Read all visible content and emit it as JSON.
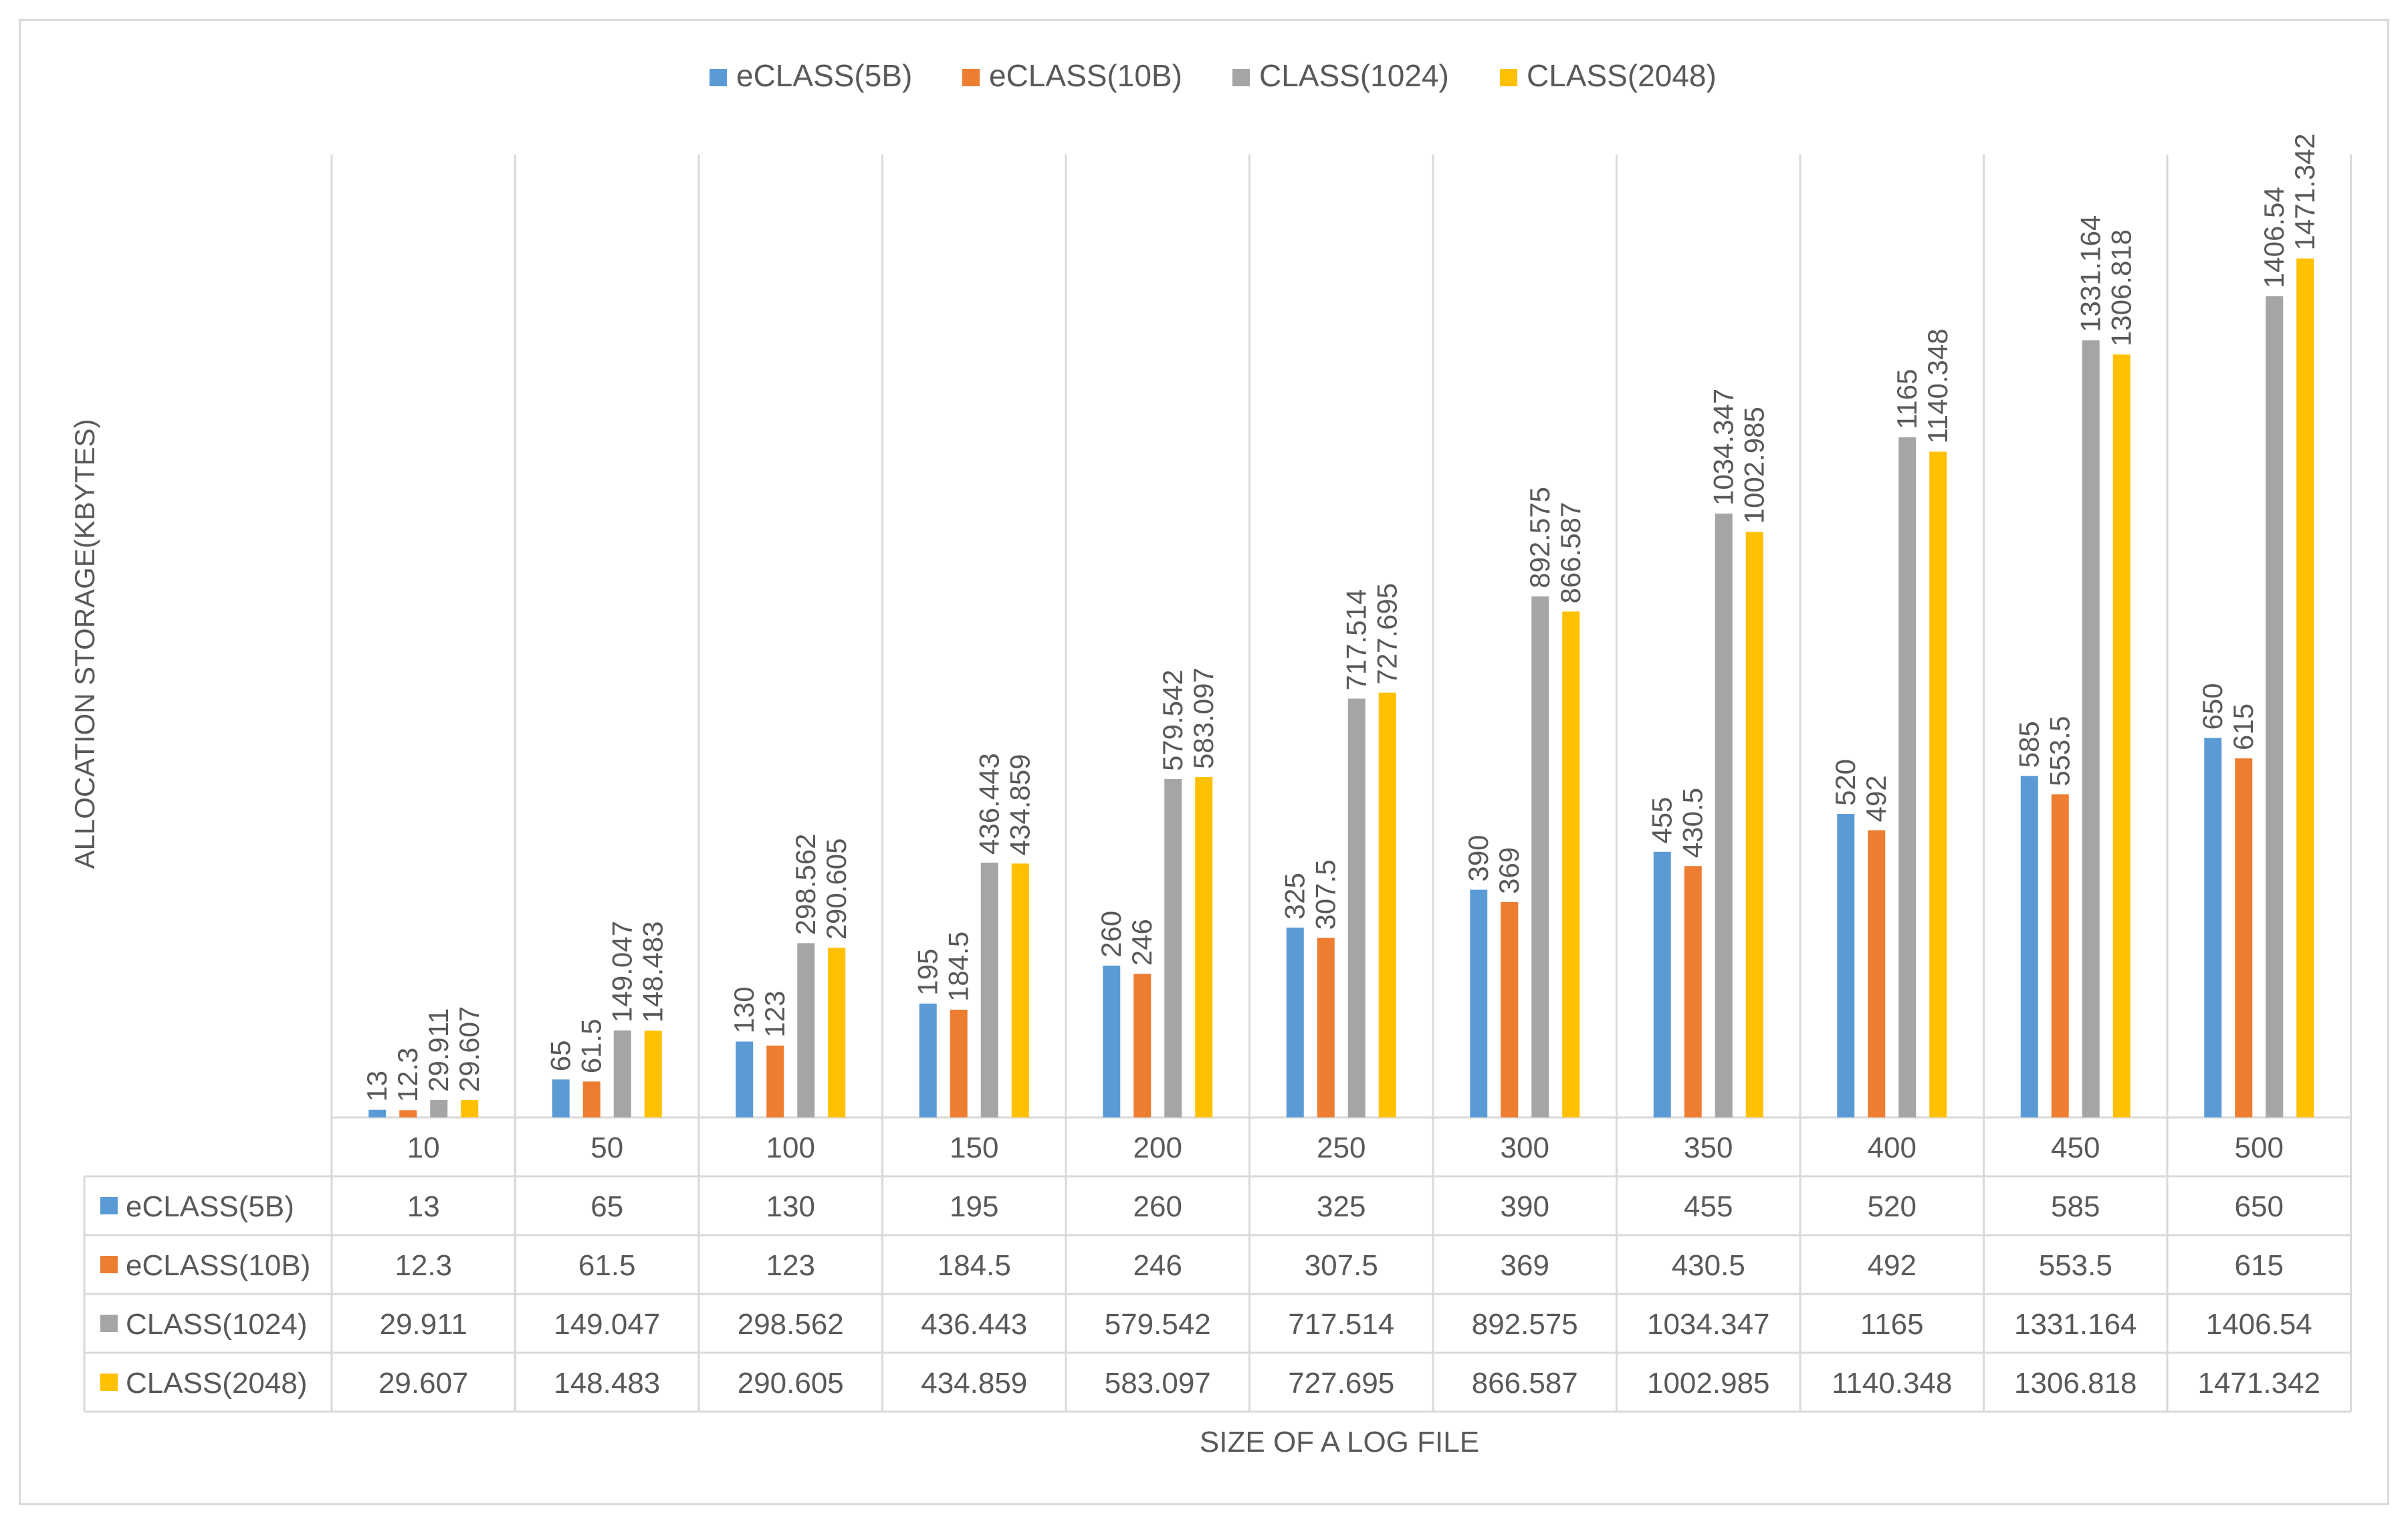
{
  "chart_data": {
    "type": "bar",
    "title": "",
    "xlabel": "SIZE OF A LOG FILE",
    "ylabel": "ALLOCATION STORAGE(KBYTES)",
    "categories": [
      "10",
      "50",
      "100",
      "150",
      "200",
      "250",
      "300",
      "350",
      "400",
      "450",
      "500"
    ],
    "ylim": [
      0,
      1600
    ],
    "grid": false,
    "legend_position": "top",
    "data_table": true,
    "series": [
      {
        "name": "eCLASS(5B)",
        "color": "#5b9bd5",
        "values": [
          13,
          65,
          130,
          195,
          260,
          325,
          390,
          455,
          520,
          585,
          650
        ],
        "labels": [
          "13",
          "65",
          "130",
          "195",
          "260",
          "325",
          "390",
          "455",
          "520",
          "585",
          "650"
        ]
      },
      {
        "name": "eCLASS(10B)",
        "color": "#ed7d31",
        "values": [
          12.3,
          61.5,
          123,
          184.5,
          246,
          307.5,
          369,
          430.5,
          492,
          553.5,
          615
        ],
        "labels": [
          "12.3",
          "61.5",
          "123",
          "184.5",
          "246",
          "307.5",
          "369",
          "430.5",
          "492",
          "553.5",
          "615"
        ]
      },
      {
        "name": "CLASS(1024)",
        "color": "#a5a5a5",
        "values": [
          29.911,
          149.047,
          298.562,
          436.443,
          579.542,
          717.514,
          892.575,
          1034.347,
          1165,
          1331.164,
          1406.54
        ],
        "labels": [
          "29.911",
          "149.047",
          "298.562",
          "436.443",
          "579.542",
          "717.514",
          "892.575",
          "1034.347",
          "1165",
          "1331.164",
          "1406.54"
        ]
      },
      {
        "name": "CLASS(2048)",
        "color": "#ffc000",
        "values": [
          29.607,
          148.483,
          290.605,
          434.859,
          583.097,
          727.695,
          866.587,
          1002.985,
          1140.348,
          1306.818,
          1471.342
        ],
        "labels": [
          "29.607",
          "148.483",
          "290.605",
          "434.859",
          "583.097",
          "727.695",
          "866.587",
          "1002.985",
          "1140.348",
          "1306.818",
          "1471.342"
        ]
      }
    ]
  }
}
